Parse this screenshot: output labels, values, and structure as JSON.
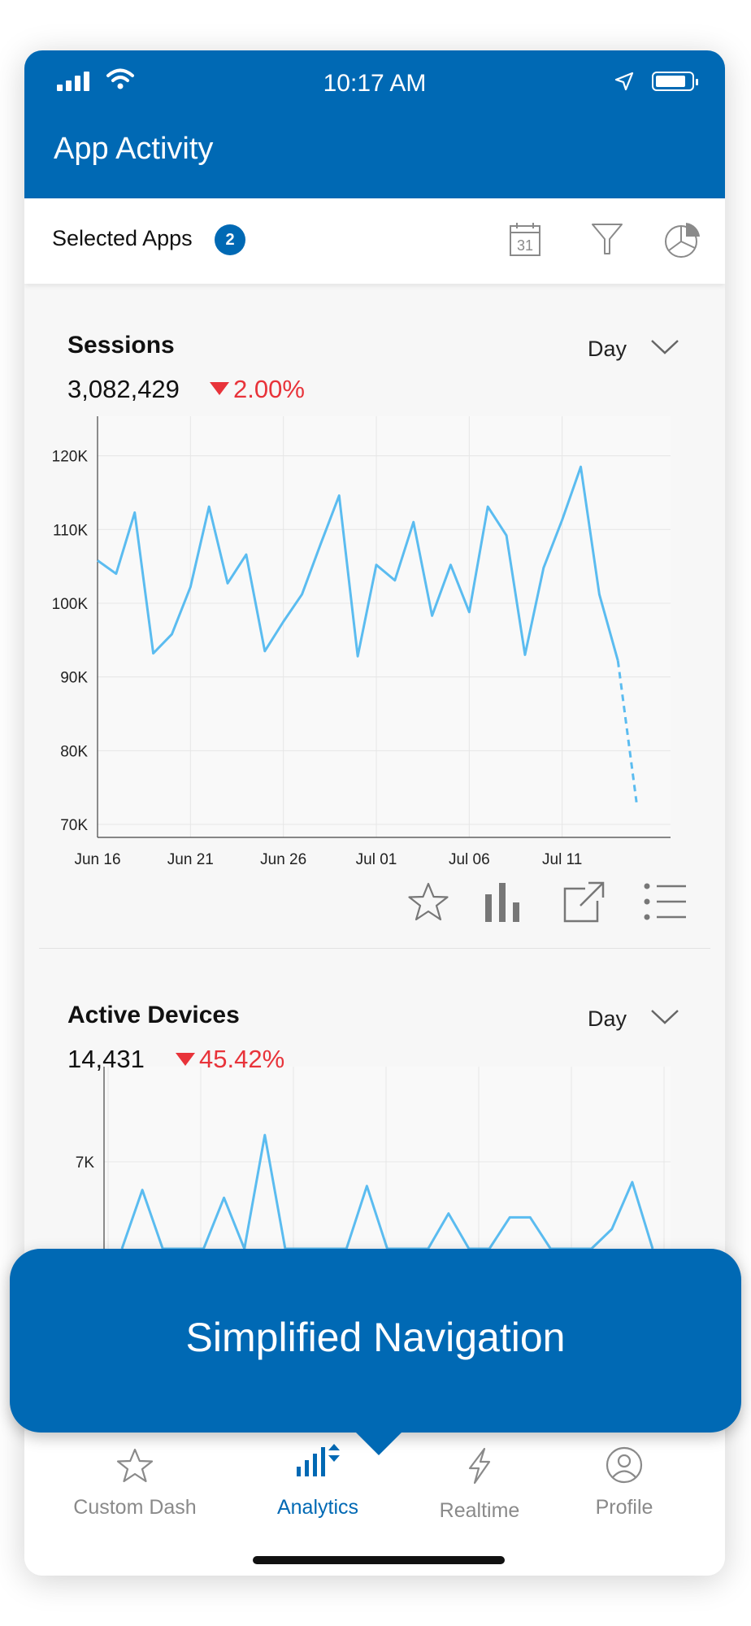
{
  "status_bar": {
    "time": "10:17 AM"
  },
  "header": {
    "title": "App Activity"
  },
  "subbar": {
    "selected_label": "Selected Apps",
    "selected_count": "2"
  },
  "sessions_card": {
    "title": "Sessions",
    "value": "3,082,429",
    "delta": "2.00%",
    "period": "Day"
  },
  "devices_card": {
    "title": "Active Devices",
    "value": "14,431",
    "delta": "45.42%",
    "period": "Day"
  },
  "chart_data": [
    {
      "type": "line",
      "x": [
        "Jun 16",
        "Jun 17",
        "Jun 18",
        "Jun 19",
        "Jun 20",
        "Jun 21",
        "Jun 22",
        "Jun 23",
        "Jun 24",
        "Jun 25",
        "Jun 26",
        "Jun 27",
        "Jun 28",
        "Jun 29",
        "Jun 30",
        "Jul 01",
        "Jul 02",
        "Jul 03",
        "Jul 04",
        "Jul 05",
        "Jul 06",
        "Jul 07",
        "Jul 08",
        "Jul 09",
        "Jul 10",
        "Jul 11",
        "Jul 12",
        "Jul 13",
        "Jul 14",
        "Jul 15"
      ],
      "x_ticks": [
        "Jun 16",
        "Jun 21",
        "Jun 26",
        "Jul 01",
        "Jul 06",
        "Jul 11"
      ],
      "y_ticks": [
        "70K",
        "80K",
        "90K",
        "100K",
        "110K",
        "120K"
      ],
      "series": [
        {
          "values": [
            105.8,
            104.0,
            112.3,
            93.2,
            95.8,
            102.2,
            113.1,
            102.7,
            106.6,
            93.5,
            97.5,
            101.2,
            108.0,
            114.6,
            92.8,
            105.2,
            103.1,
            111.0,
            98.3,
            105.2,
            98.8,
            113.1,
            109.2,
            93.0,
            104.8,
            111.3,
            118.5,
            101.2,
            92.2,
            73.0
          ]
        }
      ],
      "projected_from_index": 28,
      "ylim": [
        70,
        121.5
      ]
    },
    {
      "type": "line",
      "x_count": 27,
      "y_ticks": [
        "7K"
      ],
      "series": [
        {
          "values": [
            5.85,
            6.6,
            5.85,
            5.85,
            5.85,
            6.5,
            5.85,
            7.3,
            5.85,
            5.85,
            5.85,
            5.85,
            6.65,
            5.85,
            5.85,
            5.85,
            6.3,
            5.85,
            5.85,
            6.25,
            6.25,
            5.85,
            5.85,
            5.85,
            6.1,
            6.7,
            5.85
          ]
        }
      ],
      "ylim": [
        5.85,
        7.55
      ]
    }
  ],
  "tooltip": {
    "text": "Simplified Navigation"
  },
  "tabs": [
    {
      "label": "Custom Dash",
      "icon": "star-icon"
    },
    {
      "label": "Analytics",
      "icon": "analytics-icon"
    },
    {
      "label": "Realtime",
      "icon": "lightning-icon"
    },
    {
      "label": "Profile",
      "icon": "profile-icon"
    }
  ],
  "colors": {
    "brand": "#0069b4",
    "line": "#5bbcf0",
    "negative": "#e8333a"
  }
}
